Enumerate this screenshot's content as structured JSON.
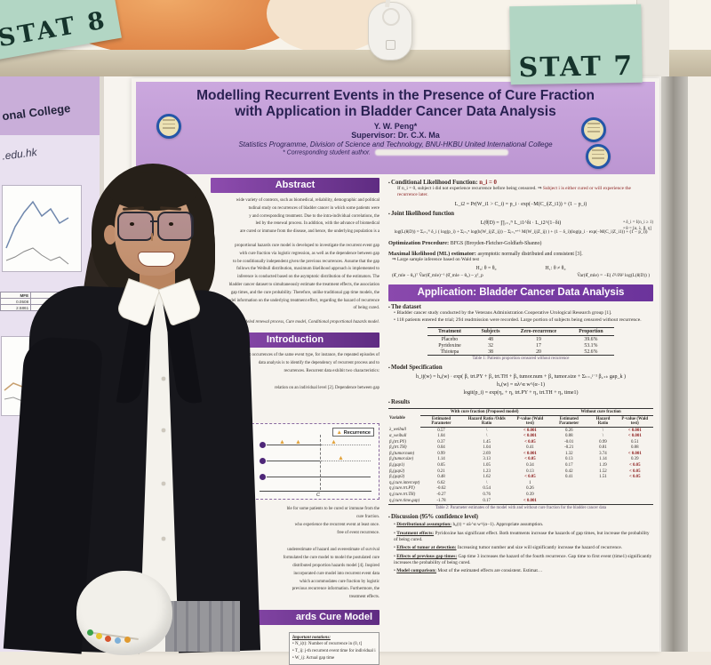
{
  "scene": {
    "sign_left": "STAT 8",
    "sign_right": "STAT 7"
  },
  "neighbor_poster": {
    "college_fragment": "onal College",
    "email_fragment": ".edu.hk",
    "table": {
      "headers": [
        "MFE",
        "Max Drawdown"
      ],
      "rows": [
        [
          "0.0508",
          "-0.4056"
        ],
        [
          "2.5861",
          "-0.7906"
        ]
      ]
    }
  },
  "poster": {
    "title_line1": "Modelling Recurrent Events in the Presence of Cure Fraction",
    "title_line2": "with Application in Bladder Cancer Data Analysis",
    "author": "Y. W. Peng*",
    "supervisor": "Supervisor: Dr. C.X. Ma",
    "affiliation": "Statistics Programme, Division of Science and Technology, BNU-HKBU United International College",
    "footnote": "* Corresponding student author.",
    "abstract": {
      "header": "Abstract",
      "lines1": [
        "wide variety of contexts, such as biomedical, reliability, demographic and political",
        "tudinal study on recurrences of bladder cancer in which some patients were",
        "y and corresponding treatment. Due to the intra-individual correlations, the",
        "led by the renewal process. In addition, with the advance of biomedical",
        "are cured or immune from the disease, and hence, the underlying population is a"
      ],
      "lines2": [
        "proportional hazards cure model is developed to investigate the recurrent event gap",
        "with cure fraction via logistic regression, as well as the dependence between gap",
        "to be conditionally independent given the previous recurrences. Assume that the gap",
        "follows the Weibull distribution, maximum likelihood approach is implemented to",
        "inference is conducted based on the asymptotic distribution of the estimators. The",
        "bladder cancer dataset to simultaneously estimate the treatment effects, the association",
        "gap times, and the cure probability. Therefore, unlike traditional gap time models, the",
        "model information on the underlying treatment effect, regarding the hazard of recurrence",
        "of being cured."
      ],
      "keywords": "deled renewal process, Cure model, Conditional proportional hazards model."
    },
    "introduction": {
      "header": "Introduction",
      "lines": [
        "the repeat occurrences of the same event type, for instance, the repeated episodes of",
        "data analysis is to identify the dependency of recurrent process and to",
        "recurrences. Recurrent data exhibit two characteristics:"
      ],
      "line_dependence": "relation on an individual level [2]. Dependence between gap",
      "figure": {
        "legend": "Recurrence",
        "axis_label": "C"
      },
      "lines_below": [
        "ble for some patients to be cured or immune from the",
        "cure fraction.",
        "who experience the recurrent event at least once.",
        "free of event recurrence."
      ],
      "lines_para2": [
        "underestimate of hazard and overestimate of survival",
        "formulated the cure model to model the postulated cure",
        "distributed proportion hazards model [4]. Inspired",
        "incorporated cure model into recurrent event data",
        "which accommodates cure fraction by logistic",
        "previous recurrence information. Furthermore, the",
        "treatment effects."
      ]
    },
    "cure_model": {
      "header": "ards Cure Model",
      "notations_title": "Important notations:",
      "notations": [
        "N_i(t): Number of recurrence in (0, t]",
        "T_ij: j-th recurrent event time for individual i",
        "W_ij: Actual gap time"
      ]
    },
    "right": {
      "cond_title": "Conditional Likelihood Function: ",
      "cond_value": "n_i = 0",
      "note1_black": "If n_i = 0, subject i did not experience recurrence before being censored. ⇒ ",
      "note1_red": "Subject i is either cured or will experience the",
      "note2_red": "recurrence later.",
      "cond_formula": "L_i2 = Pr(W_i1 > C_i) = p_i · exp(−M(C_i|Z_i1)) + (1 − p_i)",
      "joint_title": "Joint likelihood function",
      "joint_formula": "L(θ|D) = ∏ᵢ₌₁ᴺ  L_i1^δi · L_i2^(1−δi)",
      "joint_note1": "• δ_i = I(n_i ≥ 1)",
      "joint_note2": "• θ = [α, λ, β, η]",
      "log_formula": "log(L(θ|D)) = Σᵢ₌₁ᴺ δ_i ( log(p_i) + Σⱼ₌₁ⁿ log(h(W_ij|Z_ij)) − Σⱼ₌₁ⁿ⁺¹ M(W_ij|Z_ij) ) + (1 − δ_i)(log(p_i · exp(−M(C_i|Z_i1)) + (1 − p_i))",
      "optimization_lead": "Optimization Procedure: ",
      "optimization_rest": "BFGS (Broyden-Fletcher-Goldfarb-Shanno)",
      "ml_lead": "Maximal likelihood (ML) estimator: ",
      "ml_rest": "asymptotic normally distributed and consistent [3].",
      "wald_note": "⇒ Large sample inference based on Wald test",
      "h0": "H₀: θ = θ₀",
      "h1": "H₁: θ ≠ θ₀",
      "wald_formula": "(θ̂_mle − θ₀)ᵀ V̂ar(θ̂_mle)⁻¹ (θ̂_mle − θ₀) ~ χ²_p",
      "var_formula": "V̂ar(θ̂_mle) = −E( ∂²/∂θ² log(L(θ|D)) )",
      "application_header": "Application: Bladder Cancer Data Analysis",
      "dataset_title": "The dataset",
      "dataset_b1": "Bladder cancer study conducted by the Veterans Administration Cooperative Urological Research group [1].",
      "dataset_b2": "118 patients entered the trial; 294 readmission were recorded. Large portion of subjects being censored without recurrence.",
      "table1": {
        "headers": [
          "Treatment",
          "Subjects",
          "Zero-recurrence",
          "Proportion"
        ],
        "rows": [
          [
            "Placebo",
            "48",
            "19",
            "39.6%"
          ],
          [
            "Pyridoxine",
            "32",
            "17",
            "53.1%"
          ],
          [
            "Thiotepa",
            "38",
            "20",
            "52.6%"
          ]
        ],
        "caption": "Table 1: Patients proportion censored without recurrence"
      },
      "model_spec_title": "Model Specification",
      "spec_formula1": "h_ij(w) = h₀(w) · exp( β₁ trt.PY + β₂ trt.TH + β₃ tumor.num + β₄ tumor.size + Σₖ₌₁ʲ⁻¹ β₄₊ₖ gap_k )",
      "spec_formula2": "h₀(w) = αλ^α w^(α−1)",
      "spec_formula3": "logit(p_i) = exp(η₀ + η₁ trt.PY + η₂ trt.TH + η₃ time1)",
      "results_title": "Results",
      "table2": {
        "col0": "Variable",
        "group1": "With cure fraction (Proposed model)",
        "group2": "Without cure fraction",
        "cols1": [
          "Estimated Parameter",
          "Hazard Ratio /Odds Ratio",
          "P-value (Wald test)"
        ],
        "cols2": [
          "Estimated Parameter",
          "Hazard Ratio",
          "P-value (Wald test)"
        ],
        "rows": [
          [
            "λ_weibull",
            "0.57",
            "\\",
            "< 0.001",
            "0.26",
            "\\",
            "< 0.001"
          ],
          [
            "α_weibull",
            "1.04",
            "\\",
            "< 0.001",
            "0.88",
            "\\",
            "< 0.001"
          ],
          [
            "β₁(trt.PY)",
            "0.37",
            "1.45",
            "< 0.05",
            "-0.01",
            "0.99",
            "0.51"
          ],
          [
            "β₂(trt.TH)",
            "0.04",
            "1.04",
            "0.41",
            "-0.21",
            "0.81",
            "0.88"
          ],
          [
            "β₃(tumor.num)",
            "0.99",
            "2.69",
            "< 0.001",
            "1.32",
            "3.74",
            "< 0.001"
          ],
          [
            "β₄(tumor.size)",
            "1.14",
            "3.13",
            "< 0.05",
            "0.13",
            "1.14",
            "0.39"
          ],
          [
            "β₅(gap1)",
            "0.05",
            "1.05",
            "0.34",
            "0.17",
            "1.19",
            "< 0.05"
          ],
          [
            "β₆(gap2)",
            "0.21",
            "1.23",
            "0.13",
            "0.42",
            "1.52",
            "< 0.05"
          ],
          [
            "β₇(gap3)",
            "0.48",
            "1.62",
            "< 0.05",
            "0.41",
            "1.51",
            "< 0.05"
          ],
          [
            "η₀(cure.intercept)",
            "6.62",
            "\\",
            "1",
            "",
            "",
            ""
          ],
          [
            "η₁(cure.trt.PY)",
            "-0.62",
            "0.54",
            "0.26",
            "",
            "",
            ""
          ],
          [
            "η₂(cure.trt.TH)",
            "-0.27",
            "0.76",
            "0.39",
            "",
            "",
            ""
          ],
          [
            "η₃(cure.time.gap)",
            "-1.78",
            "0.17",
            "< 0.001",
            "",
            "",
            ""
          ]
        ],
        "caption": "Table 2: Parameter estimates of the model with and without cure fraction for the bladder cancer data"
      },
      "discussion_title": "Discussion (95% confidence level)",
      "discussion": [
        {
          "lead": "Distributional assumption:",
          "text": "h₀(t) = αλ^α w^(α−1). Appropriate assumption."
        },
        {
          "lead": "Treatment effects:",
          "text": "Pyridoxine has significant effect. Both treatments increase the hazards of gap times, but increase the probability of being cured."
        },
        {
          "lead": "Effects of tumor at detection:",
          "text": "Increasing tumor number and size will significantly increase the hazard of recurrence."
        },
        {
          "lead": "Effects of previous gap times:",
          "text": "Gap time 3 increases the hazard of the fourth recurrence. Gap time to first event (time1) significantly increases the probability of being cured."
        },
        {
          "lead": "Model comparison:",
          "text": "Most of the estimated effects are consistent. Estimat…"
        }
      ]
    }
  }
}
